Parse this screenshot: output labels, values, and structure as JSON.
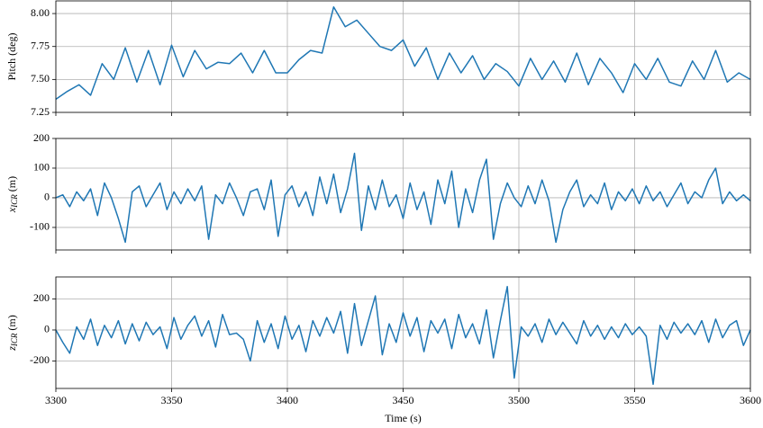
{
  "chart_data": [
    {
      "type": "line",
      "ylabel": "Pitch (deg)",
      "x": [
        3300,
        3305,
        3310,
        3315,
        3320,
        3325,
        3330,
        3335,
        3340,
        3345,
        3350,
        3355,
        3360,
        3365,
        3370,
        3375,
        3380,
        3385,
        3390,
        3395,
        3400,
        3405,
        3410,
        3415,
        3420,
        3425,
        3430,
        3435,
        3440,
        3445,
        3450,
        3455,
        3460,
        3465,
        3470,
        3475,
        3480,
        3485,
        3490,
        3495,
        3500,
        3505,
        3510,
        3515,
        3520,
        3525,
        3530,
        3535,
        3540,
        3545,
        3550,
        3555,
        3560,
        3565,
        3570,
        3575,
        3580,
        3585,
        3590,
        3595,
        3600
      ],
      "series": [
        {
          "color": "#1f77b4",
          "values": [
            7.35,
            7.41,
            7.46,
            7.38,
            7.62,
            7.5,
            7.74,
            7.48,
            7.72,
            7.46,
            7.76,
            7.52,
            7.72,
            7.58,
            7.63,
            7.62,
            7.7,
            7.55,
            7.72,
            7.55,
            7.55,
            7.65,
            7.72,
            7.7,
            8.05,
            7.9,
            7.95,
            7.85,
            7.75,
            7.72,
            7.8,
            7.6,
            7.74,
            7.5,
            7.7,
            7.55,
            7.68,
            7.5,
            7.62,
            7.56,
            7.45,
            7.66,
            7.5,
            7.64,
            7.48,
            7.7,
            7.46,
            7.66,
            7.55,
            7.4,
            7.62,
            7.5,
            7.66,
            7.48,
            7.45,
            7.64,
            7.5,
            7.72,
            7.48,
            7.55,
            7.5
          ]
        }
      ],
      "xlim": [
        3300,
        3600
      ],
      "xticks": [
        3300,
        3350,
        3400,
        3450,
        3500,
        3550,
        3600
      ],
      "ylim": [
        7.25,
        8.096
      ],
      "yticks": [
        {
          "value": 7.25,
          "label": "7.25"
        },
        {
          "value": 7.5,
          "label": "7.50"
        },
        7.75,
        {
          "value": 8,
          "label": "8.00"
        }
      ],
      "grid": true
    },
    {
      "type": "line",
      "ylabel_var": "x",
      "ylabel_sub": "ICR",
      "ylabel_unit": "(m)",
      "x": [
        3300,
        3303,
        3306,
        3309,
        3312,
        3315,
        3318,
        3321,
        3324,
        3327,
        3330,
        3333,
        3336,
        3339,
        3342,
        3345,
        3348,
        3351,
        3354,
        3357,
        3360,
        3363,
        3366,
        3369,
        3372,
        3375,
        3378,
        3381,
        3384,
        3387,
        3390,
        3393,
        3396,
        3399,
        3402,
        3405,
        3408,
        3411,
        3414,
        3417,
        3420,
        3423,
        3426,
        3429,
        3432,
        3435,
        3438,
        3441,
        3444,
        3447,
        3450,
        3453,
        3456,
        3459,
        3462,
        3465,
        3468,
        3471,
        3474,
        3477,
        3480,
        3483,
        3486,
        3489,
        3492,
        3495,
        3498,
        3501,
        3504,
        3507,
        3510,
        3513,
        3516,
        3519,
        3522,
        3525,
        3528,
        3531,
        3534,
        3537,
        3540,
        3543,
        3546,
        3549,
        3552,
        3555,
        3558,
        3561,
        3564,
        3567,
        3570,
        3573,
        3576,
        3579,
        3582,
        3585,
        3588,
        3591,
        3594,
        3597,
        3600
      ],
      "series": [
        {
          "color": "#1f77b4",
          "values": [
            0,
            10,
            -30,
            20,
            -10,
            30,
            -60,
            50,
            0,
            -70,
            -150,
            20,
            40,
            -30,
            10,
            50,
            -40,
            20,
            -20,
            30,
            -10,
            40,
            -140,
            10,
            -20,
            50,
            0,
            -60,
            20,
            30,
            -40,
            60,
            -130,
            10,
            40,
            -30,
            20,
            -60,
            70,
            -20,
            80,
            -50,
            30,
            150,
            -110,
            40,
            -40,
            60,
            -30,
            10,
            -70,
            50,
            -40,
            20,
            -90,
            60,
            -20,
            90,
            -100,
            30,
            -50,
            60,
            130,
            -140,
            -20,
            50,
            0,
            -30,
            40,
            -20,
            60,
            -10,
            -150,
            -40,
            20,
            60,
            -30,
            10,
            -20,
            50,
            -40,
            20,
            -10,
            30,
            -20,
            40,
            -10,
            20,
            -30,
            10,
            50,
            -20,
            20,
            0,
            60,
            100,
            -20,
            20,
            -10,
            10,
            -10
          ]
        }
      ],
      "xlim": [
        3300,
        3600
      ],
      "xticks": [
        3300,
        3350,
        3400,
        3450,
        3500,
        3550,
        3600
      ],
      "ylim": [
        -176,
        200
      ],
      "yticks": [
        -100,
        0,
        100,
        200
      ],
      "grid": true
    },
    {
      "type": "line",
      "ylabel_var": "z",
      "ylabel_sub": "ICR",
      "ylabel_unit": "(m)",
      "xlabel": "Time (s)",
      "x": [
        3300,
        3303,
        3306,
        3309,
        3312,
        3315,
        3318,
        3321,
        3324,
        3327,
        3330,
        3333,
        3336,
        3339,
        3342,
        3345,
        3348,
        3351,
        3354,
        3357,
        3360,
        3363,
        3366,
        3369,
        3372,
        3375,
        3378,
        3381,
        3384,
        3387,
        3390,
        3393,
        3396,
        3399,
        3402,
        3405,
        3408,
        3411,
        3414,
        3417,
        3420,
        3423,
        3426,
        3429,
        3432,
        3435,
        3438,
        3441,
        3444,
        3447,
        3450,
        3453,
        3456,
        3459,
        3462,
        3465,
        3468,
        3471,
        3474,
        3477,
        3480,
        3483,
        3486,
        3489,
        3492,
        3495,
        3498,
        3501,
        3504,
        3507,
        3510,
        3513,
        3516,
        3519,
        3522,
        3525,
        3528,
        3531,
        3534,
        3537,
        3540,
        3543,
        3546,
        3549,
        3552,
        3555,
        3558,
        3561,
        3564,
        3567,
        3570,
        3573,
        3576,
        3579,
        3582,
        3585,
        3588,
        3591,
        3594,
        3597,
        3600
      ],
      "series": [
        {
          "color": "#1f77b4",
          "values": [
            0,
            -80,
            -150,
            20,
            -60,
            70,
            -100,
            30,
            -50,
            60,
            -90,
            40,
            -70,
            50,
            -30,
            20,
            -120,
            80,
            -60,
            30,
            90,
            -40,
            60,
            -110,
            100,
            -30,
            -20,
            -60,
            -200,
            60,
            -80,
            40,
            -120,
            90,
            -60,
            30,
            -140,
            60,
            -40,
            80,
            -20,
            120,
            -150,
            170,
            -100,
            60,
            220,
            -160,
            40,
            -80,
            110,
            -40,
            80,
            -140,
            60,
            -20,
            70,
            -120,
            100,
            -50,
            40,
            -90,
            130,
            -180,
            60,
            280,
            -310,
            20,
            -40,
            40,
            -80,
            70,
            -30,
            50,
            -20,
            -90,
            60,
            -40,
            30,
            -60,
            20,
            -50,
            40,
            -30,
            20,
            -40,
            -350,
            30,
            -60,
            50,
            -20,
            40,
            -30,
            60,
            -80,
            70,
            -50,
            30,
            60,
            -100,
            0
          ]
        }
      ],
      "xlim": [
        3300,
        3600
      ],
      "xticks": [
        3300,
        3350,
        3400,
        3450,
        3500,
        3550,
        3600
      ],
      "ylim": [
        -377,
        342
      ],
      "yticks": [
        -200,
        0,
        200
      ],
      "grid": true
    }
  ]
}
